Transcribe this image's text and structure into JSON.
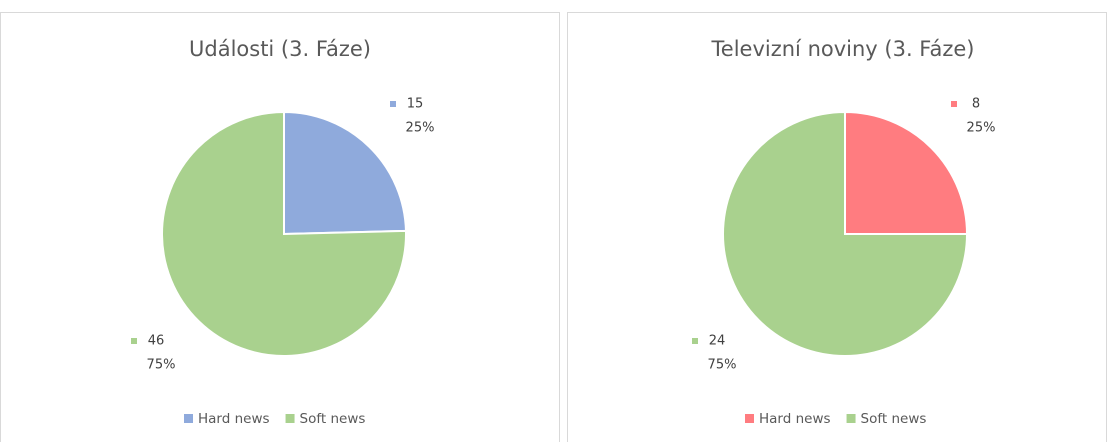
{
  "chart_data": [
    {
      "type": "pie",
      "title": "Události (3. Fáze)",
      "categories": [
        "Hard news",
        "Soft news"
      ],
      "values": [
        15,
        46
      ],
      "percent_labels": [
        "25%",
        "75%"
      ],
      "colors": [
        "#8faadc",
        "#a9d18e"
      ],
      "legend": "bottom"
    },
    {
      "type": "pie",
      "title": "Televizní noviny (3. Fáze)",
      "categories": [
        "Hard news",
        "Soft news"
      ],
      "values": [
        8,
        24
      ],
      "percent_labels": [
        "25%",
        "75%"
      ],
      "colors": [
        "#ff7c80",
        "#a9d18e"
      ],
      "legend": "bottom"
    }
  ]
}
